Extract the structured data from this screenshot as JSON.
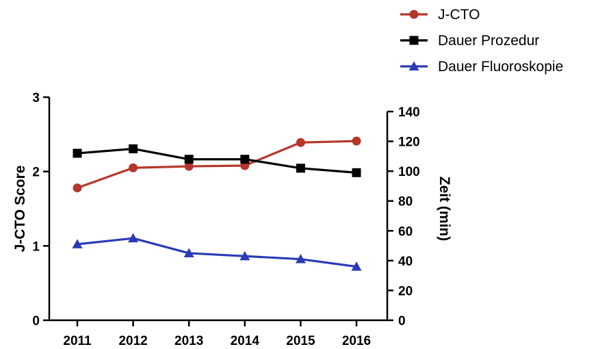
{
  "chart_data": {
    "type": "line",
    "x": [
      "2011",
      "2012",
      "2013",
      "2014",
      "2015",
      "2016"
    ],
    "axes": {
      "y_left": {
        "label": "J-CTO Score",
        "ylim": [
          0,
          3
        ],
        "ticks": [
          "0",
          "1",
          "2",
          "3"
        ]
      },
      "y_right": {
        "label": "Zeit (min)",
        "ylim": [
          0,
          140
        ],
        "ticks": [
          "0",
          "20",
          "40",
          "60",
          "80",
          "100",
          "120",
          "140"
        ]
      }
    },
    "series": [
      {
        "name": "J-CTO",
        "axis": "left",
        "marker": "circle",
        "color": "#b5362b",
        "values": [
          1.78,
          2.05,
          2.07,
          2.08,
          2.39,
          2.41
        ]
      },
      {
        "name": "Dauer Prozedur",
        "axis": "right",
        "marker": "square",
        "color": "#000000",
        "values": [
          112,
          115,
          108,
          108,
          102,
          99
        ]
      },
      {
        "name": "Dauer Fluoroskopie",
        "axis": "right",
        "marker": "triangle",
        "color": "#2b3bb5",
        "values": [
          51,
          55,
          45,
          43,
          41,
          36
        ]
      }
    ],
    "legend_position": "top-right",
    "grid": false
  }
}
